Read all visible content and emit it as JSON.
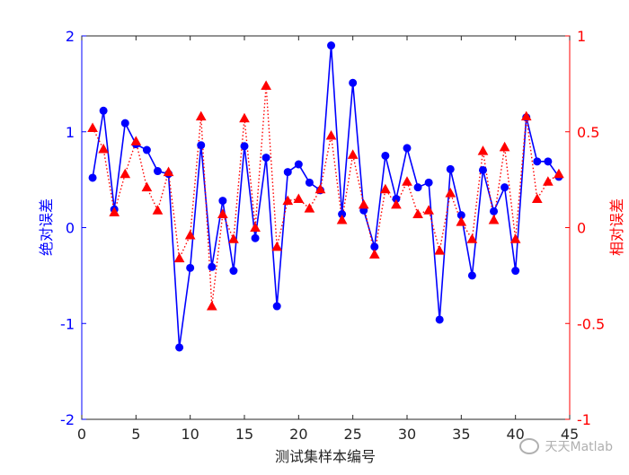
{
  "chart_data": {
    "type": "line",
    "xlabel": "测试集样本编号",
    "ylabel_left": "绝对误差",
    "ylabel_right": "相对误差",
    "xlim": [
      0,
      45
    ],
    "ylim_left": [
      -2,
      2
    ],
    "ylim_right": [
      -1,
      1
    ],
    "x_ticks": [
      "0",
      "5",
      "10",
      "15",
      "20",
      "25",
      "30",
      "35",
      "40",
      "45"
    ],
    "y_ticks_left": [
      "2",
      "1",
      "0",
      "-1",
      "-2"
    ],
    "y_ticks_right": [
      "1",
      "0.5",
      "0",
      "-0.5",
      "-1"
    ],
    "grid": false,
    "x": [
      1,
      2,
      3,
      4,
      5,
      6,
      7,
      8,
      9,
      10,
      11,
      12,
      13,
      14,
      15,
      16,
      17,
      18,
      19,
      20,
      21,
      22,
      23,
      24,
      25,
      26,
      27,
      28,
      29,
      30,
      31,
      32,
      33,
      34,
      35,
      36,
      37,
      38,
      39,
      40,
      41,
      42,
      43,
      44
    ],
    "series": [
      {
        "axis": "left",
        "color": "#0000ff",
        "line_style": "solid",
        "marker": "circle",
        "values": [
          0.52,
          1.22,
          0.19,
          1.09,
          0.87,
          0.81,
          0.59,
          0.56,
          -1.25,
          -0.42,
          0.86,
          -0.41,
          0.28,
          -0.45,
          0.85,
          -0.11,
          0.73,
          -0.82,
          0.58,
          0.66,
          0.47,
          0.39,
          1.9,
          0.14,
          1.51,
          0.18,
          -0.2,
          0.75,
          0.3,
          0.83,
          0.42,
          0.47,
          -0.96,
          0.61,
          0.13,
          -0.5,
          0.6,
          0.17,
          0.42,
          -0.45,
          1.15,
          0.69,
          0.69,
          0.53
        ]
      },
      {
        "axis": "right",
        "color": "#ff0000",
        "line_style": "dotted",
        "marker": "triangle",
        "values": [
          0.52,
          0.41,
          0.08,
          0.28,
          0.45,
          0.21,
          0.09,
          0.29,
          -0.16,
          -0.04,
          0.58,
          -0.41,
          0.07,
          -0.06,
          0.57,
          0.0,
          0.74,
          -0.1,
          0.14,
          0.15,
          0.1,
          0.2,
          0.48,
          0.04,
          0.38,
          0.12,
          -0.14,
          0.2,
          0.12,
          0.24,
          0.07,
          0.09,
          -0.12,
          0.18,
          0.03,
          -0.06,
          0.4,
          0.04,
          0.42,
          -0.06,
          0.58,
          0.15,
          0.24,
          0.28
        ]
      }
    ]
  },
  "watermark": {
    "text": "天天Matlab",
    "icon": "wechat-icon"
  }
}
